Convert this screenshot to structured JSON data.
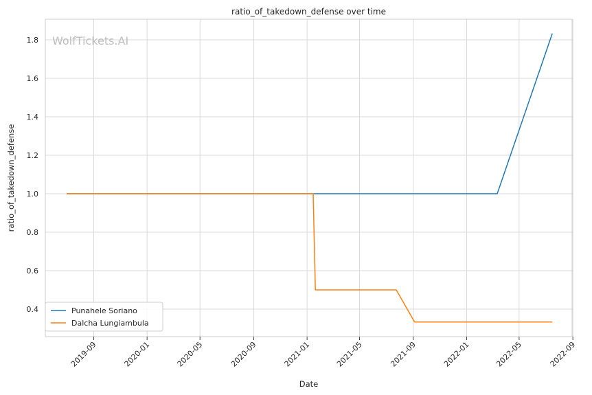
{
  "chart_data": {
    "type": "line",
    "title": "ratio_of_takedown_defense over time",
    "xlabel": "Date",
    "ylabel": "ratio_of_takedown_defense",
    "watermark": "WolfTickets.AI",
    "grid": true,
    "legend_position": "lower-left",
    "x_ticks": [
      "2019-09",
      "2020-01",
      "2020-05",
      "2020-09",
      "2021-01",
      "2021-05",
      "2021-09",
      "2022-01",
      "2022-05",
      "2022-09"
    ],
    "y_ticks": [
      "0.4",
      "0.6",
      "0.8",
      "1.0",
      "1.2",
      "1.4",
      "1.6",
      "1.8"
    ],
    "series": [
      {
        "name": "Punahele Soriano",
        "color": "#1f77b4",
        "x": [
          "2019-07-01",
          "2019-11-23",
          "2021-01-15",
          "2022-03-12",
          "2022-07-16"
        ],
        "y": [
          1.0,
          1.0,
          1.0,
          1.0,
          1.833
        ]
      },
      {
        "name": "Dalcha Lungiambula",
        "color": "#ff7f0e",
        "x": [
          "2019-07-01",
          "2021-01-15",
          "2021-01-20",
          "2021-07-24",
          "2021-09-04",
          "2022-07-16"
        ],
        "y": [
          1.0,
          1.0,
          0.5,
          0.5,
          0.333,
          0.333
        ]
      }
    ]
  }
}
